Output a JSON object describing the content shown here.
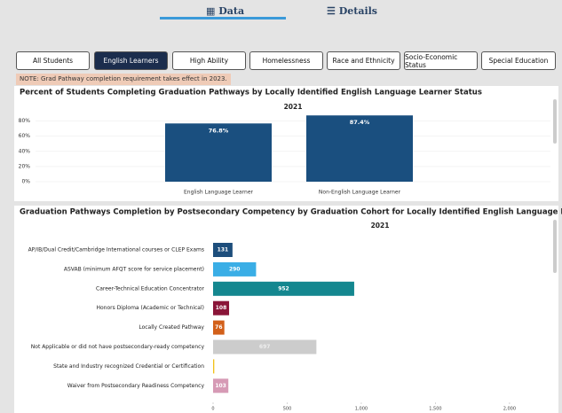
{
  "tabs": [
    "Data",
    "Details"
  ],
  "filters": [
    "All Students",
    "English Learners",
    "High Ability",
    "Homelessness",
    "Race and Ethnicity",
    "Socio-Economic Status",
    "Special Education"
  ],
  "note": "NOTE: Grad Pathway completion requirement takes effect in 2023.",
  "chart_data": [
    {
      "type": "bar",
      "title": "Percent of Students Completing Graduation Pathways by Locally Identified English Language Learner Status",
      "subtitle": "2021",
      "categories": [
        "English Language Learner",
        "Non-English Language Learner"
      ],
      "values": [
        76.8,
        87.4
      ],
      "value_labels": [
        "76.8%",
        "87.4%"
      ],
      "color": "#1a4f7f",
      "ylim": [
        0,
        90
      ],
      "yticks": [
        {
          "value": 0,
          "label": "0%"
        },
        {
          "value": 20,
          "label": "20%"
        },
        {
          "value": 40,
          "label": "40%"
        },
        {
          "value": 60,
          "label": "60%"
        },
        {
          "value": 80,
          "label": "80%"
        }
      ],
      "grid": true
    },
    {
      "type": "hbar",
      "title": "Graduation Pathways Completion by Postsecondary Competency by Graduation Cohort for Locally Identified English Language Learners",
      "subtitle": "2021",
      "categories": [
        "AP/IB/Dual Credit/Cambridge International courses or CLEP Exams",
        "ASVAB (minimum AFQT score for service placement)",
        "Career-Technical Education Concentrator",
        "Honors Diploma (Academic or Technical)",
        "Locally Created Pathway",
        "Not Applicable or did not have postsecondary-ready competency",
        "State and Industry recognized Credential or Certification",
        "Waiver from Postsecondary Readiness Competency"
      ],
      "values": [
        131,
        290,
        952,
        108,
        76,
        697,
        8,
        103
      ],
      "colors": [
        "#1d4e7c",
        "#3aaee6",
        "#14878f",
        "#8a1538",
        "#d2601a",
        "#cccccc",
        "#f2c21b",
        "#d69ab5"
      ],
      "xlim": [
        0,
        2300
      ],
      "xticks": [
        0,
        500,
        {
          "value": 1000,
          "label": "1,000"
        },
        {
          "value": 1500,
          "label": "1,500"
        },
        {
          "value": 2000,
          "label": "2,000"
        }
      ]
    }
  ]
}
